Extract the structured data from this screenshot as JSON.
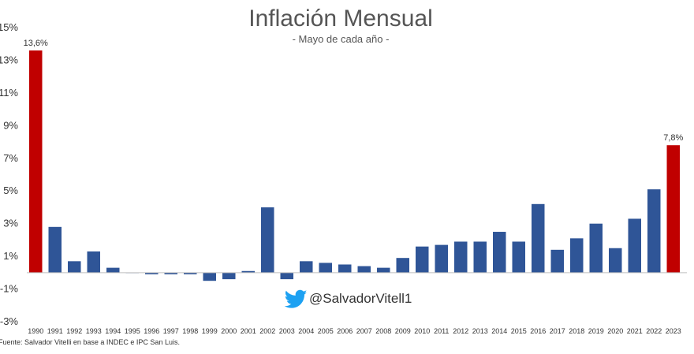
{
  "chart_data": {
    "type": "bar",
    "title": "Inflación Mensual",
    "subtitle": "- Mayo de cada año -",
    "categories": [
      "1990",
      "1991",
      "1992",
      "1993",
      "1994",
      "1995",
      "1996",
      "1997",
      "1998",
      "1999",
      "2000",
      "2001",
      "2002",
      "2003",
      "2004",
      "2005",
      "2006",
      "2007",
      "2008",
      "2009",
      "2010",
      "2011",
      "2012",
      "2013",
      "2014",
      "2015",
      "2016",
      "2017",
      "2018",
      "2019",
      "2020",
      "2021",
      "2022",
      "2023"
    ],
    "values": [
      13.6,
      2.8,
      0.7,
      1.3,
      0.3,
      0.0,
      -0.1,
      -0.1,
      -0.1,
      -0.5,
      -0.4,
      0.1,
      4.0,
      -0.4,
      0.7,
      0.6,
      0.5,
      0.4,
      0.3,
      0.9,
      1.6,
      1.7,
      1.9,
      1.9,
      2.5,
      1.9,
      4.2,
      1.4,
      2.1,
      3.0,
      1.5,
      3.3,
      5.1,
      7.8
    ],
    "highlight_color": "#C00000",
    "bar_color": "#2F5597",
    "highlighted": [
      "1990",
      "2023"
    ],
    "data_labels": [
      {
        "category": "1990",
        "text": "13,6%"
      },
      {
        "category": "2023",
        "text": "7,8%"
      }
    ],
    "yticks": [
      "15%",
      "13%",
      "11%",
      "9%",
      "7%",
      "5%",
      "3%",
      "1%",
      "-1%",
      "-3%"
    ],
    "ylim": [
      -3,
      15
    ],
    "grid": false,
    "xlabel": "",
    "ylabel": ""
  },
  "watermark": {
    "handle": "@SalvadorVitell1",
    "icon": "twitter-bird-icon",
    "icon_color": "#1DA1F2"
  },
  "source": "Fuente: Salvador Vitelli en base a INDEC e IPC San Luis."
}
